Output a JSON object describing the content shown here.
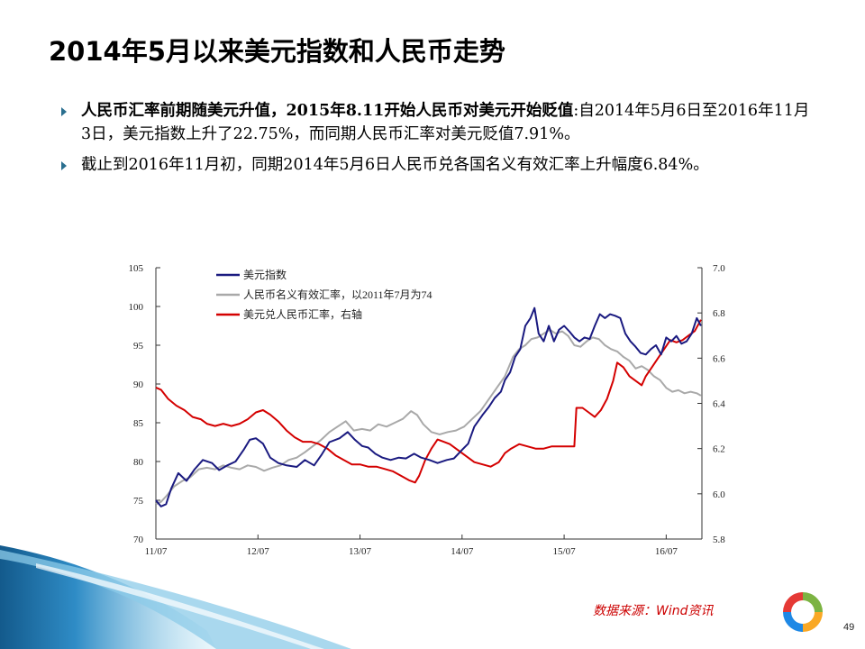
{
  "slide": {
    "title": "2014年5月以来美元指数和人民币走势",
    "bullets": [
      {
        "bold": "人民币汇率前期随美元升值，2015年8.11开始人民币对美元开始贬值",
        "rest": ":自2014年5月6日至2016年11月3日，美元指数上升了22.75%，而同期人民币汇率对美元贬值7.91%。"
      },
      {
        "bold": "",
        "rest": "截止到2016年11月初，同期2014年5月6日人民币兑各国名义有效汇率上升幅度6.84%。"
      }
    ],
    "source": "数据来源：Wind资讯",
    "page_number": "49"
  },
  "colors": {
    "usd_index": "#1a1a80",
    "cny_neer": "#a9a9a9",
    "usdcny": "#d40000",
    "bullet_arrow": "#2a6f8f",
    "source_text": "#cc0000",
    "wave_dark": "#1f6fa6",
    "wave_light": "#8ccbe8"
  },
  "icons": {
    "bullet": "triangle-right-icon",
    "logo": "ring-logo-icon"
  },
  "chart_data": {
    "type": "line",
    "x_axis": {
      "tick_labels": [
        "11/07",
        "12/07",
        "13/07",
        "14/07",
        "15/07",
        "16/07"
      ],
      "tick_values": [
        2011.5,
        2012.5,
        2013.5,
        2014.5,
        2015.5,
        2016.5
      ],
      "range": [
        2011.5,
        2016.85
      ]
    },
    "y_left": {
      "range": [
        70,
        105
      ],
      "ticks": [
        70,
        75,
        80,
        85,
        90,
        95,
        100,
        105
      ],
      "tick_labels": [
        "70",
        "75",
        "80",
        "85",
        "90",
        "95",
        "100",
        "105"
      ]
    },
    "y_right": {
      "range": [
        5.8,
        7.0
      ],
      "ticks": [
        5.8,
        6.0,
        6.2,
        6.4,
        6.6,
        6.8,
        7.0
      ],
      "tick_labels": [
        "5.8",
        "6.0",
        "6.2",
        "6.4",
        "6.6",
        "6.8",
        "7.0"
      ]
    },
    "legend_position": "top-left",
    "grid": false,
    "series": [
      {
        "name": "美元指数",
        "axis": "left",
        "color": "#1a1a80",
        "points": [
          [
            2011.5,
            75.0
          ],
          [
            2011.55,
            74.2
          ],
          [
            2011.6,
            74.5
          ],
          [
            2011.65,
            76.5
          ],
          [
            2011.72,
            78.5
          ],
          [
            2011.8,
            77.5
          ],
          [
            2011.88,
            79.0
          ],
          [
            2011.96,
            80.2
          ],
          [
            2012.05,
            79.8
          ],
          [
            2012.12,
            78.9
          ],
          [
            2012.2,
            79.5
          ],
          [
            2012.28,
            80.0
          ],
          [
            2012.36,
            81.5
          ],
          [
            2012.42,
            82.8
          ],
          [
            2012.48,
            83.0
          ],
          [
            2012.55,
            82.3
          ],
          [
            2012.62,
            80.5
          ],
          [
            2012.7,
            79.8
          ],
          [
            2012.78,
            79.5
          ],
          [
            2012.88,
            79.3
          ],
          [
            2012.96,
            80.2
          ],
          [
            2013.05,
            79.5
          ],
          [
            2013.12,
            80.8
          ],
          [
            2013.2,
            82.5
          ],
          [
            2013.3,
            83.0
          ],
          [
            2013.38,
            83.8
          ],
          [
            2013.45,
            82.8
          ],
          [
            2013.52,
            82.0
          ],
          [
            2013.58,
            81.8
          ],
          [
            2013.65,
            81.0
          ],
          [
            2013.72,
            80.5
          ],
          [
            2013.8,
            80.2
          ],
          [
            2013.88,
            80.5
          ],
          [
            2013.95,
            80.4
          ],
          [
            2014.03,
            81.0
          ],
          [
            2014.1,
            80.5
          ],
          [
            2014.18,
            80.2
          ],
          [
            2014.26,
            79.8
          ],
          [
            2014.35,
            80.2
          ],
          [
            2014.42,
            80.4
          ],
          [
            2014.5,
            81.5
          ],
          [
            2014.56,
            82.3
          ],
          [
            2014.62,
            84.5
          ],
          [
            2014.7,
            86.0
          ],
          [
            2014.76,
            87.0
          ],
          [
            2014.82,
            88.2
          ],
          [
            2014.88,
            89.0
          ],
          [
            2014.92,
            90.5
          ],
          [
            2014.97,
            91.5
          ],
          [
            2015.02,
            93.5
          ],
          [
            2015.07,
            94.5
          ],
          [
            2015.12,
            97.5
          ],
          [
            2015.17,
            98.5
          ],
          [
            2015.21,
            99.8
          ],
          [
            2015.25,
            96.5
          ],
          [
            2015.3,
            95.5
          ],
          [
            2015.35,
            97.5
          ],
          [
            2015.4,
            95.5
          ],
          [
            2015.45,
            97.0
          ],
          [
            2015.5,
            97.5
          ],
          [
            2015.55,
            96.8
          ],
          [
            2015.6,
            96.0
          ],
          [
            2015.65,
            95.5
          ],
          [
            2015.7,
            96.0
          ],
          [
            2015.75,
            95.8
          ],
          [
            2015.8,
            97.5
          ],
          [
            2015.85,
            99.0
          ],
          [
            2015.9,
            98.5
          ],
          [
            2015.95,
            99.0
          ],
          [
            2016.0,
            98.8
          ],
          [
            2016.05,
            98.5
          ],
          [
            2016.1,
            96.5
          ],
          [
            2016.15,
            95.5
          ],
          [
            2016.2,
            94.8
          ],
          [
            2016.25,
            94.0
          ],
          [
            2016.3,
            93.8
          ],
          [
            2016.35,
            94.5
          ],
          [
            2016.4,
            95.0
          ],
          [
            2016.45,
            93.8
          ],
          [
            2016.5,
            96.0
          ],
          [
            2016.55,
            95.5
          ],
          [
            2016.6,
            96.2
          ],
          [
            2016.65,
            95.2
          ],
          [
            2016.7,
            95.5
          ],
          [
            2016.75,
            96.5
          ],
          [
            2016.8,
            98.5
          ],
          [
            2016.84,
            97.5
          ]
        ]
      },
      {
        "name": "人民币名义有效汇率，以2011年7月为74",
        "axis": "left",
        "color": "#a9a9a9",
        "points": [
          [
            2011.5,
            74.5
          ],
          [
            2011.55,
            74.8
          ],
          [
            2011.6,
            75.5
          ],
          [
            2011.68,
            76.8
          ],
          [
            2011.76,
            77.5
          ],
          [
            2011.84,
            78.0
          ],
          [
            2011.92,
            79.0
          ],
          [
            2012.0,
            79.2
          ],
          [
            2012.08,
            79.0
          ],
          [
            2012.16,
            79.5
          ],
          [
            2012.24,
            79.2
          ],
          [
            2012.32,
            79.0
          ],
          [
            2012.4,
            79.5
          ],
          [
            2012.48,
            79.3
          ],
          [
            2012.56,
            78.8
          ],
          [
            2012.64,
            79.2
          ],
          [
            2012.72,
            79.5
          ],
          [
            2012.8,
            80.2
          ],
          [
            2012.88,
            80.5
          ],
          [
            2012.96,
            81.2
          ],
          [
            2013.04,
            82.0
          ],
          [
            2013.12,
            82.8
          ],
          [
            2013.2,
            83.8
          ],
          [
            2013.28,
            84.5
          ],
          [
            2013.36,
            85.2
          ],
          [
            2013.44,
            84.0
          ],
          [
            2013.52,
            84.2
          ],
          [
            2013.6,
            84.0
          ],
          [
            2013.68,
            84.8
          ],
          [
            2013.76,
            84.5
          ],
          [
            2013.84,
            85.0
          ],
          [
            2013.92,
            85.5
          ],
          [
            2014.0,
            86.5
          ],
          [
            2014.06,
            86.0
          ],
          [
            2014.12,
            84.8
          ],
          [
            2014.2,
            83.8
          ],
          [
            2014.28,
            83.5
          ],
          [
            2014.36,
            83.8
          ],
          [
            2014.44,
            84.0
          ],
          [
            2014.52,
            84.5
          ],
          [
            2014.6,
            85.5
          ],
          [
            2014.68,
            86.5
          ],
          [
            2014.76,
            88.0
          ],
          [
            2014.84,
            89.5
          ],
          [
            2014.92,
            91.0
          ],
          [
            2015.0,
            93.5
          ],
          [
            2015.06,
            94.5
          ],
          [
            2015.12,
            95.0
          ],
          [
            2015.18,
            95.8
          ],
          [
            2015.24,
            96.0
          ],
          [
            2015.3,
            96.5
          ],
          [
            2015.36,
            97.0
          ],
          [
            2015.42,
            96.5
          ],
          [
            2015.48,
            96.8
          ],
          [
            2015.54,
            96.2
          ],
          [
            2015.6,
            95.0
          ],
          [
            2015.66,
            94.8
          ],
          [
            2015.72,
            95.5
          ],
          [
            2015.78,
            96.0
          ],
          [
            2015.84,
            95.8
          ],
          [
            2015.9,
            95.0
          ],
          [
            2015.96,
            94.5
          ],
          [
            2016.02,
            94.2
          ],
          [
            2016.08,
            93.5
          ],
          [
            2016.14,
            93.0
          ],
          [
            2016.2,
            92.0
          ],
          [
            2016.26,
            92.3
          ],
          [
            2016.32,
            91.8
          ],
          [
            2016.38,
            91.0
          ],
          [
            2016.44,
            90.5
          ],
          [
            2016.5,
            89.5
          ],
          [
            2016.56,
            89.0
          ],
          [
            2016.62,
            89.2
          ],
          [
            2016.68,
            88.8
          ],
          [
            2016.74,
            89.0
          ],
          [
            2016.8,
            88.8
          ],
          [
            2016.84,
            88.5
          ]
        ]
      },
      {
        "name": "美元兑人民币汇率，右轴",
        "axis": "right",
        "color": "#d40000",
        "points": [
          [
            2011.5,
            6.47
          ],
          [
            2011.55,
            6.46
          ],
          [
            2011.62,
            6.42
          ],
          [
            2011.7,
            6.39
          ],
          [
            2011.78,
            6.37
          ],
          [
            2011.86,
            6.34
          ],
          [
            2011.94,
            6.33
          ],
          [
            2012.0,
            6.31
          ],
          [
            2012.08,
            6.3
          ],
          [
            2012.16,
            6.31
          ],
          [
            2012.24,
            6.3
          ],
          [
            2012.32,
            6.31
          ],
          [
            2012.4,
            6.33
          ],
          [
            2012.48,
            6.36
          ],
          [
            2012.55,
            6.37
          ],
          [
            2012.62,
            6.35
          ],
          [
            2012.7,
            6.32
          ],
          [
            2012.78,
            6.28
          ],
          [
            2012.86,
            6.25
          ],
          [
            2012.94,
            6.23
          ],
          [
            2013.02,
            6.23
          ],
          [
            2013.1,
            6.22
          ],
          [
            2013.18,
            6.2
          ],
          [
            2013.26,
            6.17
          ],
          [
            2013.34,
            6.15
          ],
          [
            2013.42,
            6.13
          ],
          [
            2013.5,
            6.13
          ],
          [
            2013.58,
            6.12
          ],
          [
            2013.66,
            6.12
          ],
          [
            2013.74,
            6.11
          ],
          [
            2013.82,
            6.1
          ],
          [
            2013.9,
            6.08
          ],
          [
            2013.98,
            6.06
          ],
          [
            2014.04,
            6.05
          ],
          [
            2014.08,
            6.08
          ],
          [
            2014.14,
            6.15
          ],
          [
            2014.2,
            6.2
          ],
          [
            2014.26,
            6.24
          ],
          [
            2014.32,
            6.23
          ],
          [
            2014.38,
            6.22
          ],
          [
            2014.44,
            6.2
          ],
          [
            2014.5,
            6.18
          ],
          [
            2014.56,
            6.16
          ],
          [
            2014.62,
            6.14
          ],
          [
            2014.7,
            6.13
          ],
          [
            2014.78,
            6.12
          ],
          [
            2014.86,
            6.14
          ],
          [
            2014.92,
            6.18
          ],
          [
            2014.98,
            6.2
          ],
          [
            2015.06,
            6.22
          ],
          [
            2015.14,
            6.21
          ],
          [
            2015.22,
            6.2
          ],
          [
            2015.3,
            6.2
          ],
          [
            2015.38,
            6.21
          ],
          [
            2015.46,
            6.21
          ],
          [
            2015.54,
            6.21
          ],
          [
            2015.6,
            6.21
          ],
          [
            2015.62,
            6.38
          ],
          [
            2015.68,
            6.38
          ],
          [
            2015.74,
            6.36
          ],
          [
            2015.8,
            6.34
          ],
          [
            2015.86,
            6.37
          ],
          [
            2015.92,
            6.42
          ],
          [
            2015.98,
            6.5
          ],
          [
            2016.02,
            6.58
          ],
          [
            2016.08,
            6.56
          ],
          [
            2016.14,
            6.52
          ],
          [
            2016.2,
            6.5
          ],
          [
            2016.26,
            6.48
          ],
          [
            2016.3,
            6.52
          ],
          [
            2016.36,
            6.56
          ],
          [
            2016.42,
            6.6
          ],
          [
            2016.48,
            6.64
          ],
          [
            2016.54,
            6.68
          ],
          [
            2016.6,
            6.67
          ],
          [
            2016.66,
            6.68
          ],
          [
            2016.72,
            6.7
          ],
          [
            2016.78,
            6.72
          ],
          [
            2016.84,
            6.77
          ]
        ]
      }
    ]
  }
}
